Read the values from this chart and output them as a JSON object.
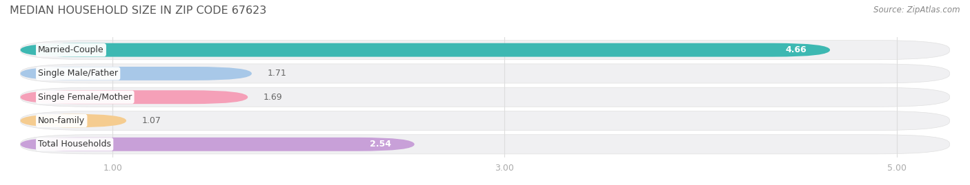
{
  "title": "MEDIAN HOUSEHOLD SIZE IN ZIP CODE 67623",
  "source": "Source: ZipAtlas.com",
  "categories": [
    "Married-Couple",
    "Single Male/Father",
    "Single Female/Mother",
    "Non-family",
    "Total Households"
  ],
  "values": [
    4.66,
    1.71,
    1.69,
    1.07,
    2.54
  ],
  "bar_colors": [
    "#3db8b2",
    "#a8c8e8",
    "#f5a0b8",
    "#f5cc90",
    "#c8a0d8"
  ],
  "value_inside": [
    true,
    false,
    false,
    false,
    true
  ],
  "value_labels": [
    "4.66",
    "1.71",
    "1.69",
    "1.07",
    "2.54"
  ],
  "xlim_min": 0.55,
  "xlim_max": 5.25,
  "xticks": [
    1.0,
    3.0,
    5.0
  ],
  "bar_height": 0.58,
  "row_bg_color": "#f0f0f2",
  "row_sep_color": "#ffffff",
  "label_fontsize": 9.0,
  "value_fontsize": 9.0,
  "title_fontsize": 11.5,
  "source_fontsize": 8.5,
  "title_color": "#555555",
  "source_color": "#888888",
  "tick_color": "#aaaaaa",
  "grid_color": "#dddddd"
}
